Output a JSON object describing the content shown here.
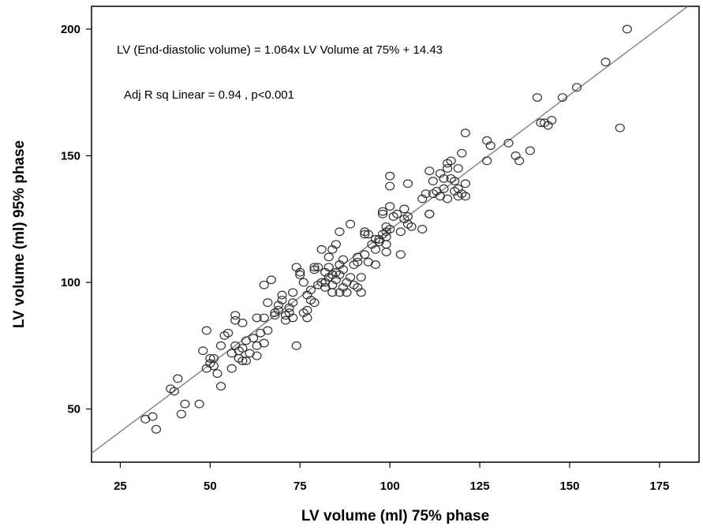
{
  "chart_data": {
    "type": "scatter",
    "xlabel": "LV volume (ml) 75% phase",
    "ylabel": "LV volume (ml) 95% phase",
    "xlim": [
      17,
      186
    ],
    "ylim": [
      29,
      209
    ],
    "xticks": [
      25,
      50,
      75,
      100,
      125,
      150,
      175
    ],
    "yticks": [
      50,
      100,
      150,
      200
    ],
    "grid": false,
    "annotations": [
      "LV (End-diastolic volume) = 1.064x LV Volume at 75% + 14.43",
      "Adj R sq Linear = 0.94 , p<0.001"
    ],
    "fit_line": {
      "slope": 1.064,
      "intercept": 14.43,
      "color": "#7a7a7a"
    },
    "marker": {
      "shape": "open-circle",
      "color": "#333333"
    },
    "points": [
      [
        32,
        46
      ],
      [
        34,
        47
      ],
      [
        35,
        42
      ],
      [
        39,
        58
      ],
      [
        40,
        57
      ],
      [
        41,
        62
      ],
      [
        42,
        48
      ],
      [
        43,
        52
      ],
      [
        47,
        52
      ],
      [
        48,
        73
      ],
      [
        49,
        81
      ],
      [
        49,
        66
      ],
      [
        50,
        70
      ],
      [
        50,
        68
      ],
      [
        51,
        67
      ],
      [
        51,
        70
      ],
      [
        52,
        64
      ],
      [
        53,
        59
      ],
      [
        53,
        75
      ],
      [
        54,
        79
      ],
      [
        55,
        80
      ],
      [
        56,
        66
      ],
      [
        56,
        72
      ],
      [
        57,
        85
      ],
      [
        57,
        87
      ],
      [
        57,
        75
      ],
      [
        58,
        70
      ],
      [
        58,
        73
      ],
      [
        59,
        74
      ],
      [
        59,
        69
      ],
      [
        59,
        84
      ],
      [
        60,
        77
      ],
      [
        60,
        69
      ],
      [
        61,
        72
      ],
      [
        62,
        78
      ],
      [
        63,
        75
      ],
      [
        63,
        71
      ],
      [
        63,
        86
      ],
      [
        64,
        80
      ],
      [
        65,
        99
      ],
      [
        65,
        86
      ],
      [
        65,
        76
      ],
      [
        66,
        81
      ],
      [
        66,
        92
      ],
      [
        67,
        101
      ],
      [
        68,
        87
      ],
      [
        68,
        88
      ],
      [
        69,
        89
      ],
      [
        69,
        91
      ],
      [
        70,
        95
      ],
      [
        70,
        93
      ],
      [
        71,
        87
      ],
      [
        71,
        85
      ],
      [
        72,
        90
      ],
      [
        72,
        88
      ],
      [
        73,
        86
      ],
      [
        73,
        92
      ],
      [
        73,
        96
      ],
      [
        74,
        75
      ],
      [
        74,
        106
      ],
      [
        75,
        103
      ],
      [
        75,
        104
      ],
      [
        76,
        88
      ],
      [
        76,
        100
      ],
      [
        77,
        89
      ],
      [
        77,
        86
      ],
      [
        77,
        95
      ],
      [
        78,
        93
      ],
      [
        78,
        97
      ],
      [
        79,
        105
      ],
      [
        79,
        106
      ],
      [
        79,
        92
      ],
      [
        80,
        99
      ],
      [
        80,
        106
      ],
      [
        81,
        100
      ],
      [
        81,
        113
      ],
      [
        82,
        104
      ],
      [
        82,
        98
      ],
      [
        82,
        100
      ],
      [
        83,
        102
      ],
      [
        83,
        106
      ],
      [
        83,
        110
      ],
      [
        84,
        96
      ],
      [
        84,
        99
      ],
      [
        84,
        103
      ],
      [
        84,
        113
      ],
      [
        85,
        115
      ],
      [
        85,
        101
      ],
      [
        85,
        104
      ],
      [
        86,
        96
      ],
      [
        86,
        103
      ],
      [
        86,
        120
      ],
      [
        86,
        107
      ],
      [
        87,
        98
      ],
      [
        87,
        105
      ],
      [
        87,
        109
      ],
      [
        88,
        96
      ],
      [
        88,
        100
      ],
      [
        89,
        102
      ],
      [
        89,
        123
      ],
      [
        90,
        99
      ],
      [
        90,
        107
      ],
      [
        91,
        98
      ],
      [
        91,
        108
      ],
      [
        91,
        110
      ],
      [
        92,
        96
      ],
      [
        92,
        102
      ],
      [
        93,
        111
      ],
      [
        93,
        119
      ],
      [
        93,
        120
      ],
      [
        94,
        108
      ],
      [
        94,
        119
      ],
      [
        95,
        115
      ],
      [
        96,
        117
      ],
      [
        96,
        107
      ],
      [
        96,
        113
      ],
      [
        97,
        117
      ],
      [
        97,
        116
      ],
      [
        98,
        119
      ],
      [
        98,
        127
      ],
      [
        98,
        128
      ],
      [
        99,
        115
      ],
      [
        99,
        120
      ],
      [
        99,
        112
      ],
      [
        99,
        118
      ],
      [
        99,
        122
      ],
      [
        100,
        142
      ],
      [
        100,
        138
      ],
      [
        100,
        130
      ],
      [
        100,
        121
      ],
      [
        101,
        126
      ],
      [
        102,
        127
      ],
      [
        103,
        111
      ],
      [
        103,
        120
      ],
      [
        104,
        125
      ],
      [
        104,
        129
      ],
      [
        105,
        123
      ],
      [
        105,
        139
      ],
      [
        105,
        126
      ],
      [
        106,
        122
      ],
      [
        109,
        121
      ],
      [
        109,
        133
      ],
      [
        110,
        135
      ],
      [
        111,
        144
      ],
      [
        111,
        127
      ],
      [
        111,
        127
      ],
      [
        112,
        140
      ],
      [
        112,
        135
      ],
      [
        113,
        136
      ],
      [
        114,
        134
      ],
      [
        114,
        143
      ],
      [
        115,
        141
      ],
      [
        115,
        137
      ],
      [
        116,
        133
      ],
      [
        116,
        145
      ],
      [
        116,
        147
      ],
      [
        117,
        141
      ],
      [
        117,
        148
      ],
      [
        118,
        136
      ],
      [
        118,
        140
      ],
      [
        119,
        137
      ],
      [
        119,
        145
      ],
      [
        119,
        134
      ],
      [
        120,
        135
      ],
      [
        120,
        151
      ],
      [
        121,
        134
      ],
      [
        121,
        159
      ],
      [
        121,
        139
      ],
      [
        127,
        148
      ],
      [
        127,
        156
      ],
      [
        128,
        154
      ],
      [
        133,
        155
      ],
      [
        135,
        150
      ],
      [
        136,
        148
      ],
      [
        139,
        152
      ],
      [
        141,
        173
      ],
      [
        142,
        163
      ],
      [
        143,
        163
      ],
      [
        144,
        162
      ],
      [
        145,
        164
      ],
      [
        148,
        173
      ],
      [
        152,
        177
      ],
      [
        160,
        187
      ],
      [
        164,
        161
      ],
      [
        166,
        200
      ]
    ]
  }
}
